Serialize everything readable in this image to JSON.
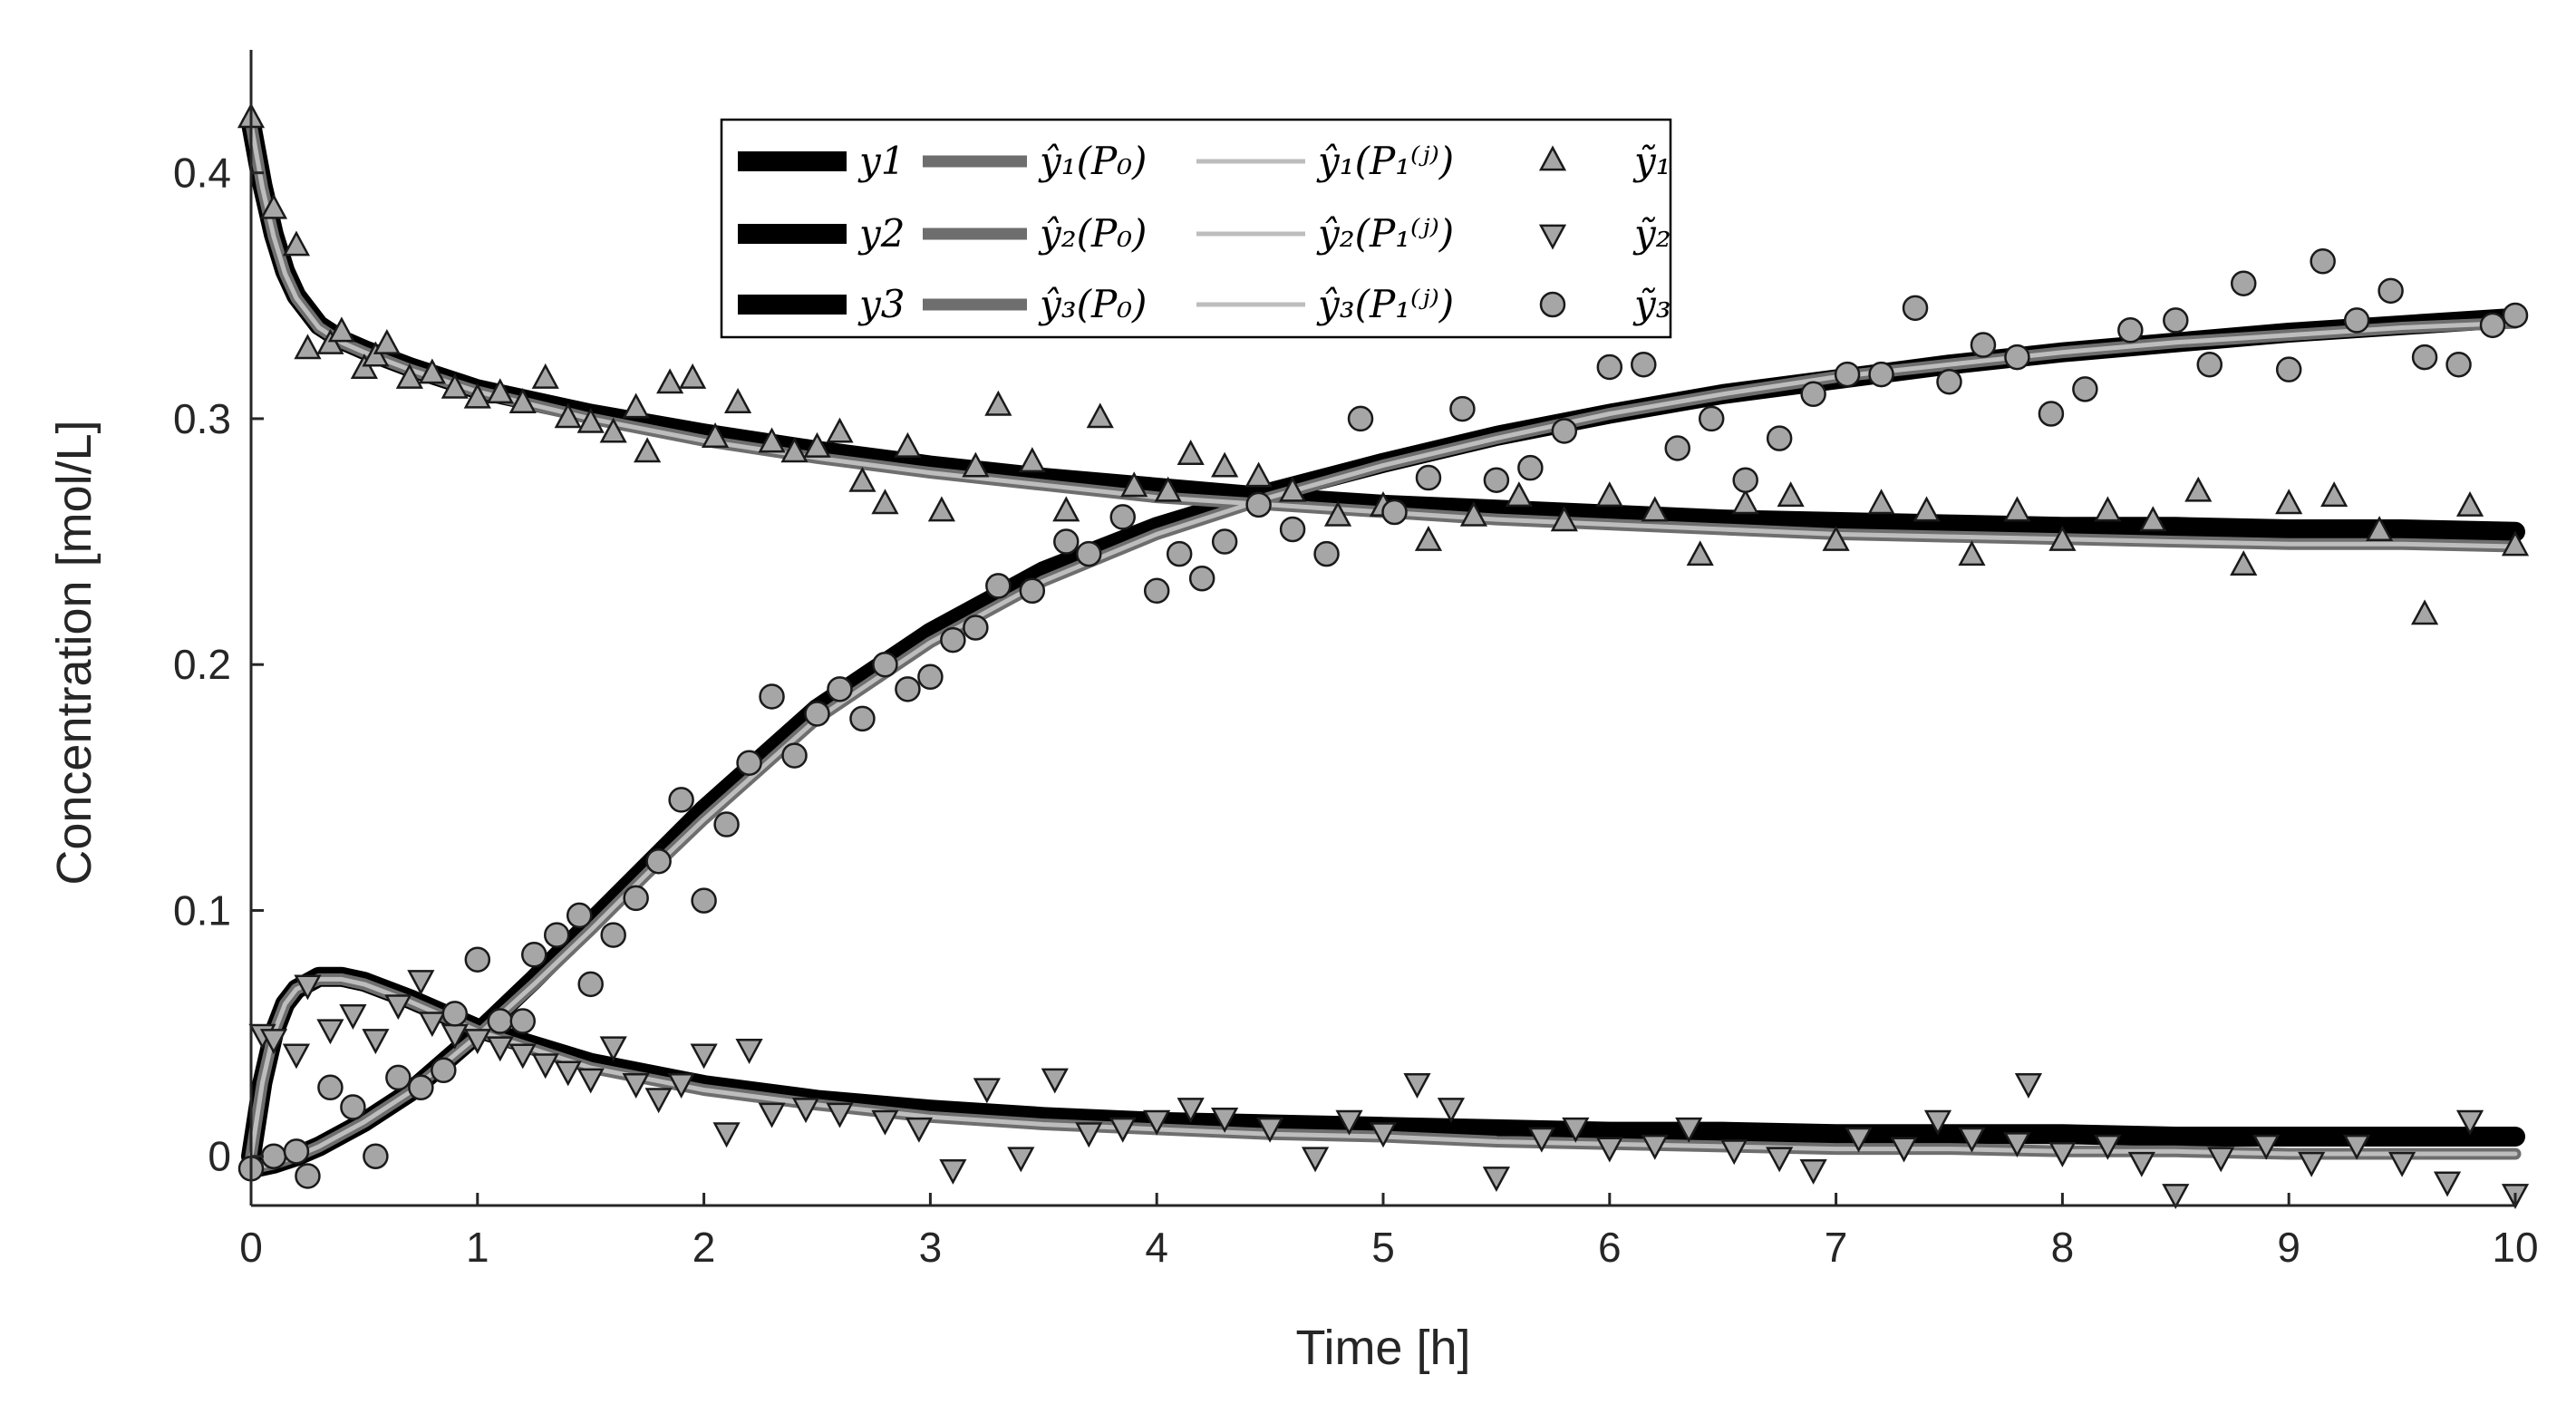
{
  "chart_data": {
    "type": "line",
    "title": "",
    "xlabel": "Time [h]",
    "ylabel": "Concentration [mol/L]",
    "xlim": [
      0,
      10
    ],
    "ylim": [
      -0.02,
      0.45
    ],
    "xticks": [
      "0",
      "1",
      "2",
      "3",
      "4",
      "5",
      "6",
      "7",
      "8",
      "9",
      "10"
    ],
    "yticks": [
      "0",
      "0.1",
      "0.2",
      "0.3",
      "0.4"
    ],
    "grid": false,
    "legend_position": "top-center",
    "series": [
      {
        "name": "y1",
        "kind": "line",
        "style": "true",
        "color": "#000000",
        "x": [
          0,
          0.05,
          0.1,
          0.15,
          0.2,
          0.3,
          0.4,
          0.5,
          0.7,
          1,
          1.5,
          2,
          2.5,
          3,
          3.5,
          4,
          4.5,
          5,
          5.5,
          6,
          6.5,
          7,
          7.5,
          8,
          8.5,
          9,
          9.5,
          10
        ],
        "y": [
          0.42,
          0.395,
          0.375,
          0.36,
          0.35,
          0.338,
          0.332,
          0.328,
          0.321,
          0.312,
          0.302,
          0.294,
          0.287,
          0.281,
          0.276,
          0.272,
          0.268,
          0.265,
          0.263,
          0.261,
          0.259,
          0.258,
          0.257,
          0.256,
          0.256,
          0.255,
          0.255,
          0.254
        ]
      },
      {
        "name": "y2",
        "kind": "line",
        "style": "true",
        "color": "#000000",
        "x": [
          0,
          0.05,
          0.1,
          0.15,
          0.2,
          0.3,
          0.4,
          0.5,
          0.7,
          1,
          1.5,
          2,
          2.5,
          3,
          3.5,
          4,
          4.5,
          5,
          5.5,
          6,
          6.5,
          7,
          7.5,
          8,
          8.5,
          9,
          9.5,
          10
        ],
        "y": [
          0,
          0.03,
          0.05,
          0.062,
          0.068,
          0.073,
          0.073,
          0.071,
          0.064,
          0.052,
          0.038,
          0.029,
          0.023,
          0.019,
          0.016,
          0.014,
          0.013,
          0.012,
          0.011,
          0.01,
          0.01,
          0.009,
          0.009,
          0.009,
          0.008,
          0.008,
          0.008,
          0.008
        ]
      },
      {
        "name": "y3",
        "kind": "line",
        "style": "true",
        "color": "#000000",
        "x": [
          0,
          0.1,
          0.2,
          0.3,
          0.5,
          0.7,
          1,
          1.25,
          1.5,
          1.75,
          2,
          2.5,
          3,
          3.5,
          4,
          4.5,
          5,
          5.5,
          6,
          6.5,
          7,
          7.5,
          8,
          8.5,
          9,
          9.5,
          10
        ],
        "y": [
          -0.005,
          -0.003,
          0,
          0.004,
          0.014,
          0.026,
          0.05,
          0.072,
          0.095,
          0.118,
          0.141,
          0.182,
          0.213,
          0.238,
          0.256,
          0.27,
          0.282,
          0.293,
          0.302,
          0.31,
          0.316,
          0.322,
          0.327,
          0.331,
          0.335,
          0.338,
          0.341
        ]
      },
      {
        "name": "ŷ₁(P₀)",
        "kind": "line",
        "style": "estimate-P0",
        "color": "#6e6e6e",
        "x": [
          0,
          0.05,
          0.1,
          0.15,
          0.2,
          0.3,
          0.4,
          0.5,
          0.7,
          1,
          1.5,
          2,
          2.5,
          3,
          3.5,
          4,
          4.5,
          5,
          5.5,
          6,
          6.5,
          7,
          7.5,
          8,
          8.5,
          9,
          9.5,
          10
        ],
        "y": [
          0.42,
          0.394,
          0.374,
          0.359,
          0.349,
          0.337,
          0.331,
          0.327,
          0.32,
          0.311,
          0.3,
          0.291,
          0.284,
          0.278,
          0.273,
          0.268,
          0.265,
          0.262,
          0.259,
          0.257,
          0.255,
          0.253,
          0.252,
          0.251,
          0.25,
          0.249,
          0.249,
          0.248
        ]
      },
      {
        "name": "ŷ₂(P₀)",
        "kind": "line",
        "style": "estimate-P0",
        "color": "#6e6e6e",
        "x": [
          0,
          0.05,
          0.1,
          0.15,
          0.2,
          0.3,
          0.4,
          0.5,
          0.7,
          1,
          1.5,
          2,
          2.5,
          3,
          3.5,
          4,
          4.5,
          5,
          5.5,
          6,
          6.5,
          7,
          7.5,
          8,
          8.5,
          9,
          9.5,
          10
        ],
        "y": [
          0,
          0.03,
          0.05,
          0.062,
          0.068,
          0.072,
          0.072,
          0.07,
          0.063,
          0.051,
          0.036,
          0.027,
          0.021,
          0.016,
          0.013,
          0.011,
          0.009,
          0.008,
          0.006,
          0.005,
          0.004,
          0.003,
          0.003,
          0.002,
          0.002,
          0.001,
          0.001,
          0.001
        ]
      },
      {
        "name": "ŷ₃(P₀)",
        "kind": "line",
        "style": "estimate-P0",
        "color": "#6e6e6e",
        "x": [
          0,
          0.1,
          0.2,
          0.3,
          0.5,
          0.7,
          1,
          1.25,
          1.5,
          1.75,
          2,
          2.5,
          3,
          3.5,
          4,
          4.5,
          5,
          5.5,
          6,
          6.5,
          7,
          7.5,
          8,
          8.5,
          9,
          9.5,
          10
        ],
        "y": [
          -0.005,
          -0.003,
          0,
          0.004,
          0.014,
          0.026,
          0.049,
          0.07,
          0.092,
          0.115,
          0.137,
          0.178,
          0.209,
          0.234,
          0.253,
          0.268,
          0.281,
          0.292,
          0.302,
          0.31,
          0.317,
          0.322,
          0.327,
          0.331,
          0.334,
          0.337,
          0.339
        ]
      },
      {
        "name": "ŷ₁(P₁⁽ʲ⁾)",
        "kind": "line",
        "style": "estimate-P1",
        "color": "#bdbdbd",
        "x": [
          0,
          0.05,
          0.1,
          0.15,
          0.2,
          0.3,
          0.4,
          0.5,
          0.7,
          1,
          1.5,
          2,
          2.5,
          3,
          3.5,
          4,
          4.5,
          5,
          5.5,
          6,
          6.5,
          7,
          7.5,
          8,
          8.5,
          9,
          9.5,
          10
        ],
        "y": [
          0.42,
          0.394,
          0.374,
          0.359,
          0.349,
          0.337,
          0.331,
          0.327,
          0.32,
          0.311,
          0.3,
          0.291,
          0.284,
          0.278,
          0.273,
          0.268,
          0.265,
          0.262,
          0.259,
          0.257,
          0.255,
          0.253,
          0.252,
          0.251,
          0.25,
          0.249,
          0.249,
          0.248
        ]
      },
      {
        "name": "ŷ₂(P₁⁽ʲ⁾)",
        "kind": "line",
        "style": "estimate-P1",
        "color": "#bdbdbd",
        "x": [
          0,
          0.05,
          0.1,
          0.15,
          0.2,
          0.3,
          0.4,
          0.5,
          0.7,
          1,
          1.5,
          2,
          2.5,
          3,
          3.5,
          4,
          4.5,
          5,
          5.5,
          6,
          6.5,
          7,
          7.5,
          8,
          8.5,
          9,
          9.5,
          10
        ],
        "y": [
          0,
          0.03,
          0.05,
          0.062,
          0.068,
          0.072,
          0.072,
          0.07,
          0.063,
          0.051,
          0.036,
          0.027,
          0.021,
          0.016,
          0.013,
          0.011,
          0.009,
          0.008,
          0.006,
          0.005,
          0.004,
          0.003,
          0.003,
          0.002,
          0.002,
          0.001,
          0.001,
          0.001
        ]
      },
      {
        "name": "ŷ₃(P₁⁽ʲ⁾)",
        "kind": "line",
        "style": "estimate-P1",
        "color": "#bdbdbd",
        "x": [
          0,
          0.1,
          0.2,
          0.3,
          0.5,
          0.7,
          1,
          1.25,
          1.5,
          1.75,
          2,
          2.5,
          3,
          3.5,
          4,
          4.5,
          5,
          5.5,
          6,
          6.5,
          7,
          7.5,
          8,
          8.5,
          9,
          9.5,
          10
        ],
        "y": [
          -0.005,
          -0.003,
          0,
          0.004,
          0.014,
          0.026,
          0.049,
          0.07,
          0.092,
          0.115,
          0.137,
          0.178,
          0.209,
          0.234,
          0.253,
          0.268,
          0.281,
          0.292,
          0.302,
          0.31,
          0.317,
          0.322,
          0.327,
          0.331,
          0.334,
          0.337,
          0.339
        ]
      },
      {
        "name": "ỹ₁",
        "kind": "scatter",
        "marker": "triangle-up",
        "color": "#a6a6a6",
        "x": [
          0,
          0.1,
          0.2,
          0.25,
          0.35,
          0.4,
          0.5,
          0.55,
          0.6,
          0.7,
          0.8,
          0.9,
          1,
          1.1,
          1.2,
          1.3,
          1.4,
          1.5,
          1.6,
          1.7,
          1.75,
          1.85,
          1.95,
          2.05,
          2.15,
          2.3,
          2.4,
          2.5,
          2.6,
          2.7,
          2.8,
          2.9,
          3.05,
          3.2,
          3.3,
          3.45,
          3.6,
          3.75,
          3.9,
          4.05,
          4.15,
          4.3,
          4.45,
          4.6,
          4.8,
          5,
          5.2,
          5.4,
          5.6,
          5.8,
          6,
          6.2,
          6.4,
          6.6,
          6.8,
          7,
          7.2,
          7.4,
          7.6,
          7.8,
          8,
          8.2,
          8.4,
          8.6,
          8.8,
          9,
          9.2,
          9.4,
          9.6,
          9.8,
          10
        ],
        "y": [
          0.422,
          0.385,
          0.37,
          0.328,
          0.33,
          0.335,
          0.32,
          0.325,
          0.33,
          0.316,
          0.318,
          0.312,
          0.308,
          0.31,
          0.306,
          0.316,
          0.3,
          0.298,
          0.294,
          0.304,
          0.286,
          0.314,
          0.316,
          0.292,
          0.306,
          0.29,
          0.286,
          0.288,
          0.294,
          0.274,
          0.265,
          0.288,
          0.262,
          0.28,
          0.305,
          0.282,
          0.262,
          0.3,
          0.272,
          0.27,
          0.285,
          0.28,
          0.276,
          0.27,
          0.26,
          0.264,
          0.25,
          0.26,
          0.268,
          0.258,
          0.268,
          0.262,
          0.244,
          0.265,
          0.268,
          0.25,
          0.265,
          0.262,
          0.244,
          0.262,
          0.25,
          0.262,
          0.258,
          0.27,
          0.24,
          0.265,
          0.268,
          0.254,
          0.22,
          0.264,
          0.248
        ]
      },
      {
        "name": "ỹ₂",
        "kind": "scatter",
        "marker": "triangle-down",
        "color": "#a6a6a6",
        "x": [
          0.05,
          0.1,
          0.2,
          0.25,
          0.35,
          0.45,
          0.55,
          0.65,
          0.75,
          0.8,
          0.9,
          1,
          1.1,
          1.2,
          1.3,
          1.4,
          1.5,
          1.6,
          1.7,
          1.8,
          1.9,
          2,
          2.1,
          2.2,
          2.3,
          2.45,
          2.6,
          2.8,
          2.95,
          3.1,
          3.25,
          3.4,
          3.55,
          3.7,
          3.85,
          4,
          4.15,
          4.3,
          4.5,
          4.7,
          4.85,
          5,
          5.15,
          5.3,
          5.5,
          5.7,
          5.85,
          6,
          6.2,
          6.35,
          6.55,
          6.75,
          6.9,
          7.1,
          7.3,
          7.45,
          7.6,
          7.8,
          7.85,
          8,
          8.2,
          8.35,
          8.5,
          8.7,
          8.9,
          9.1,
          9.3,
          9.5,
          9.7,
          9.8,
          10
        ],
        "y": [
          0.05,
          0.048,
          0.042,
          0.07,
          0.052,
          0.058,
          0.048,
          0.062,
          0.072,
          0.055,
          0.05,
          0.048,
          0.045,
          0.042,
          0.038,
          0.035,
          0.032,
          0.045,
          0.03,
          0.024,
          0.03,
          0.042,
          0.01,
          0.044,
          0.018,
          0.02,
          0.018,
          0.015,
          0.012,
          -0.005,
          0.028,
          0,
          0.032,
          0.01,
          0.012,
          0.015,
          0.02,
          0.016,
          0.012,
          0,
          0.015,
          0.01,
          0.03,
          0.02,
          -0.008,
          0.008,
          0.012,
          0.004,
          0.005,
          0.012,
          0.003,
          0,
          -0.005,
          0.008,
          0.004,
          0.015,
          0.008,
          0.006,
          0.03,
          0.002,
          0.005,
          -0.002,
          -0.015,
          0,
          0.005,
          -0.002,
          0.005,
          -0.002,
          -0.01,
          0.015,
          -0.015
        ]
      },
      {
        "name": "ỹ₃",
        "kind": "scatter",
        "marker": "circle",
        "color": "#a6a6a6",
        "x": [
          0,
          0.1,
          0.2,
          0.25,
          0.35,
          0.45,
          0.55,
          0.65,
          0.75,
          0.85,
          0.9,
          1,
          1.1,
          1.2,
          1.25,
          1.35,
          1.45,
          1.5,
          1.6,
          1.7,
          1.8,
          1.9,
          2,
          2.1,
          2.2,
          2.3,
          2.4,
          2.5,
          2.6,
          2.7,
          2.8,
          2.9,
          3,
          3.1,
          3.2,
          3.3,
          3.45,
          3.6,
          3.7,
          3.85,
          4,
          4.1,
          4.2,
          4.3,
          4.45,
          4.6,
          4.75,
          4.9,
          5.05,
          5.2,
          5.35,
          5.5,
          5.65,
          5.8,
          6,
          6.15,
          6.3,
          6.45,
          6.6,
          6.75,
          6.9,
          7.05,
          7.2,
          7.35,
          7.5,
          7.65,
          7.8,
          7.95,
          8.1,
          8.3,
          8.5,
          8.65,
          8.8,
          9,
          9.15,
          9.3,
          9.45,
          9.6,
          9.75,
          9.9,
          10
        ],
        "y": [
          -0.005,
          0,
          0.002,
          -0.008,
          0.028,
          0.02,
          0,
          0.032,
          0.028,
          0.035,
          0.058,
          0.08,
          0.055,
          0.055,
          0.082,
          0.09,
          0.098,
          0.07,
          0.09,
          0.105,
          0.12,
          0.145,
          0.104,
          0.135,
          0.16,
          0.187,
          0.163,
          0.18,
          0.19,
          0.178,
          0.2,
          0.19,
          0.195,
          0.21,
          0.215,
          0.232,
          0.23,
          0.25,
          0.245,
          0.26,
          0.23,
          0.245,
          0.235,
          0.25,
          0.265,
          0.255,
          0.245,
          0.3,
          0.262,
          0.276,
          0.304,
          0.275,
          0.28,
          0.295,
          0.321,
          0.322,
          0.288,
          0.3,
          0.275,
          0.292,
          0.31,
          0.318,
          0.318,
          0.345,
          0.315,
          0.33,
          0.325,
          0.302,
          0.312,
          0.336,
          0.34,
          0.322,
          0.355,
          0.32,
          0.364,
          0.34,
          0.352,
          0.325,
          0.322,
          0.338,
          0.342
        ]
      }
    ]
  },
  "legend": [
    {
      "label": "y1",
      "color": "#000000"
    },
    {
      "label": "ŷ₁(P₀)",
      "color": "#6e6e6e"
    },
    {
      "label": "ŷ₁(P₁⁽ʲ⁾)",
      "color": "#bdbdbd"
    },
    {
      "label": "ỹ₁",
      "marker": "triangle-up"
    },
    {
      "label": "y2",
      "color": "#000000"
    },
    {
      "label": "ŷ₂(P₀)",
      "color": "#6e6e6e"
    },
    {
      "label": "ŷ₂(P₁⁽ʲ⁾)",
      "color": "#bdbdbd"
    },
    {
      "label": "ỹ₂",
      "marker": "triangle-down"
    },
    {
      "label": "y3",
      "color": "#000000"
    },
    {
      "label": "ŷ₃(P₀)",
      "color": "#6e6e6e"
    },
    {
      "label": "ŷ₃(P₁⁽ʲ⁾)",
      "color": "#bdbdbd"
    },
    {
      "label": "ỹ₃",
      "marker": "circle"
    }
  ]
}
